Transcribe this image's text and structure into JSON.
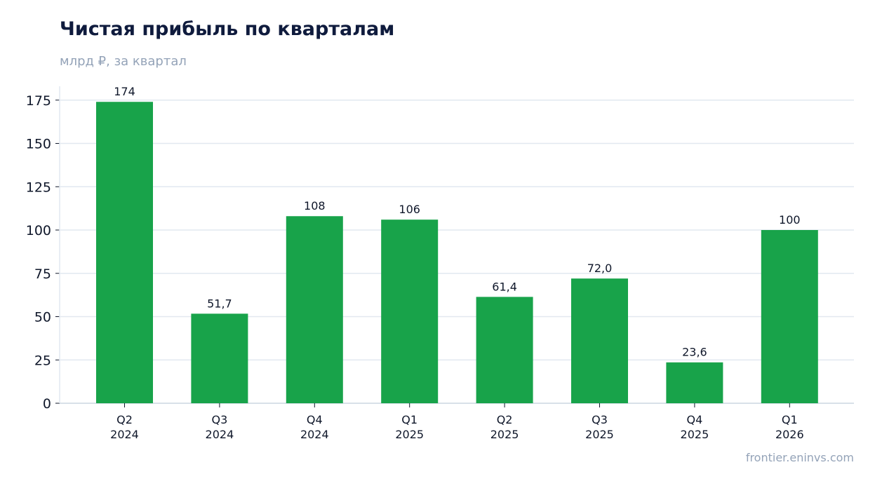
{
  "chart_data": {
    "type": "bar",
    "title": "Чистая прибыль по кварталам",
    "subtitle": "млрд ₽, за квартал",
    "xlabel": "",
    "ylabel": "",
    "categories": [
      [
        "Q2",
        "2024"
      ],
      [
        "Q3",
        "2024"
      ],
      [
        "Q4",
        "2024"
      ],
      [
        "Q1",
        "2025"
      ],
      [
        "Q2",
        "2025"
      ],
      [
        "Q3",
        "2025"
      ],
      [
        "Q4",
        "2025"
      ],
      [
        "Q1",
        "2026"
      ]
    ],
    "values": [
      174,
      51.7,
      108,
      106,
      61.4,
      72.0,
      23.6,
      100
    ],
    "value_labels": [
      "174",
      "51,7",
      "108",
      "106",
      "61,4",
      "72,0",
      "23,6",
      "100"
    ],
    "ylim": [
      0,
      183
    ],
    "yticks": [
      0,
      25,
      50,
      75,
      100,
      125,
      150,
      175
    ],
    "grid": "horizontal",
    "bar_color": "#18a34a",
    "grid_color": "#e2e8f0"
  },
  "source_text": "frontier.eninvs.com"
}
